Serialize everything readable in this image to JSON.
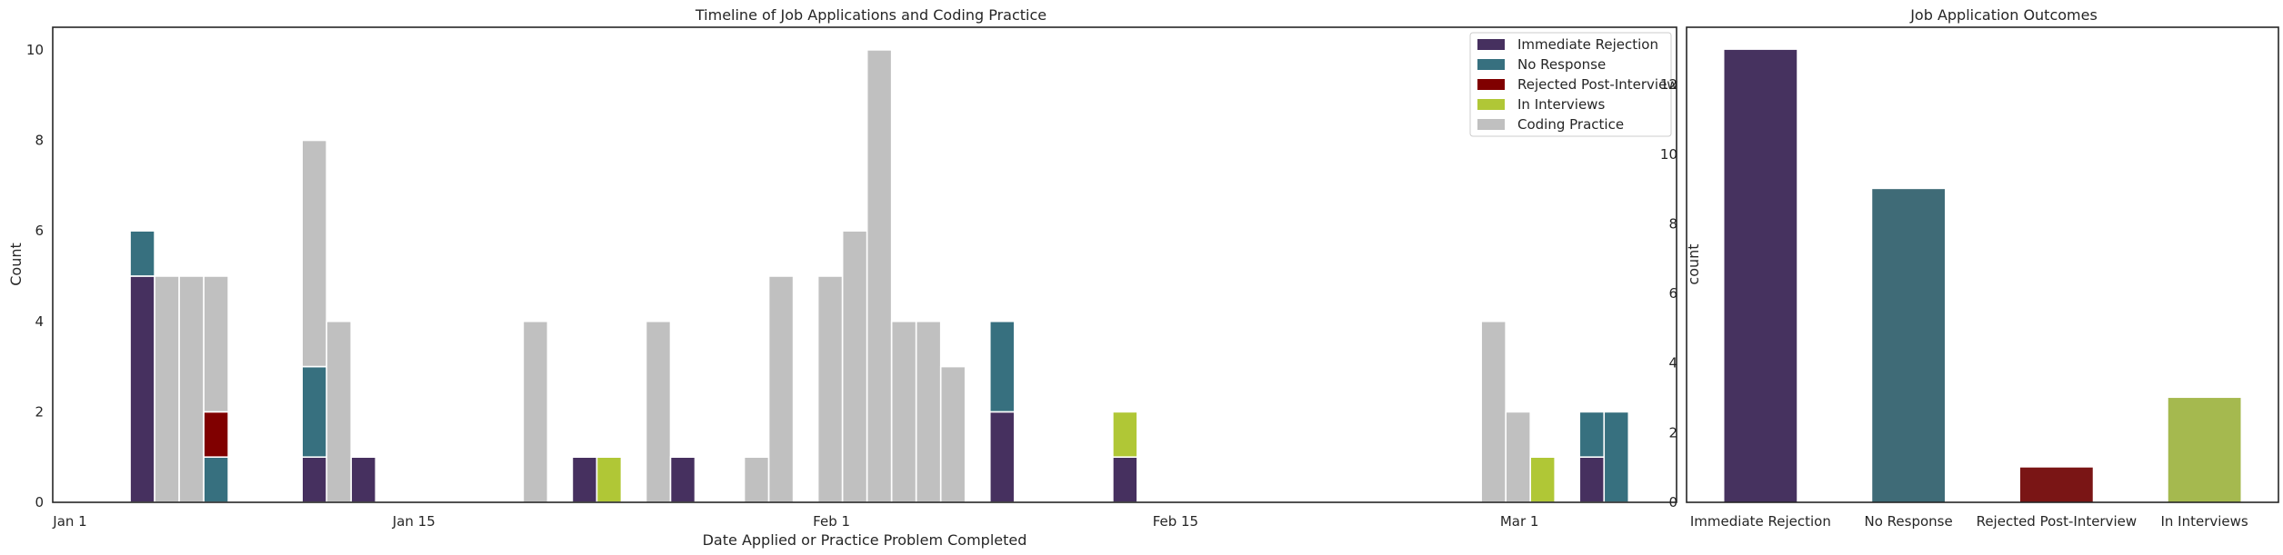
{
  "chart_data": [
    {
      "type": "bar",
      "stacked": true,
      "title": "Timeline of Job Applications and Coding Practice",
      "xlabel": "Date Applied or Practice Problem Completed",
      "ylabel": "Count",
      "xlim_day": [
        0,
        69
      ],
      "ylim": [
        0,
        10.5
      ],
      "yticks": [
        0,
        2,
        4,
        6,
        8,
        10
      ],
      "xticks": [
        {
          "day": 0,
          "label": "Jan 1"
        },
        {
          "day": 14,
          "label": "Jan 15"
        },
        {
          "day": 31,
          "label": "Feb 1"
        },
        {
          "day": 45,
          "label": "Feb 15"
        },
        {
          "day": 59,
          "label": "Mar 1"
        }
      ],
      "legend_position": "top-right",
      "series": [
        {
          "name": "Immediate Rejection",
          "color": "#46305f"
        },
        {
          "name": "No Response",
          "color": "#37707f"
        },
        {
          "name": "Rejected Post-Interview",
          "color": "#800000"
        },
        {
          "name": "In Interviews",
          "color": "#b0c736"
        },
        {
          "name": "Coding Practice",
          "color": "#c0c0c0"
        }
      ],
      "bins": [
        {
          "day": 3,
          "values": {
            "Immediate Rejection": 5,
            "No Response": 1
          }
        },
        {
          "day": 4,
          "values": {
            "Coding Practice": 5
          }
        },
        {
          "day": 5,
          "values": {
            "Coding Practice": 5
          }
        },
        {
          "day": 6,
          "values": {
            "No Response": 1,
            "Rejected Post-Interview": 1,
            "Coding Practice": 3
          }
        },
        {
          "day": 10,
          "values": {
            "Immediate Rejection": 1,
            "No Response": 2,
            "Coding Practice": 5
          }
        },
        {
          "day": 11,
          "values": {
            "Coding Practice": 4
          }
        },
        {
          "day": 12,
          "values": {
            "Immediate Rejection": 1
          }
        },
        {
          "day": 19,
          "values": {
            "Coding Practice": 4
          }
        },
        {
          "day": 21,
          "values": {
            "Immediate Rejection": 1
          }
        },
        {
          "day": 22,
          "values": {
            "In Interviews": 1
          }
        },
        {
          "day": 24,
          "values": {
            "Coding Practice": 4
          }
        },
        {
          "day": 25,
          "values": {
            "Immediate Rejection": 1
          }
        },
        {
          "day": 28,
          "values": {
            "Coding Practice": 1
          }
        },
        {
          "day": 29,
          "values": {
            "Coding Practice": 5
          }
        },
        {
          "day": 31,
          "values": {
            "Coding Practice": 5
          }
        },
        {
          "day": 32,
          "values": {
            "Coding Practice": 6
          }
        },
        {
          "day": 33,
          "values": {
            "Coding Practice": 10
          }
        },
        {
          "day": 34,
          "values": {
            "Coding Practice": 4
          }
        },
        {
          "day": 35,
          "values": {
            "Coding Practice": 4
          }
        },
        {
          "day": 36,
          "values": {
            "Coding Practice": 3
          }
        },
        {
          "day": 38,
          "values": {
            "Immediate Rejection": 2,
            "No Response": 2
          }
        },
        {
          "day": 43,
          "values": {
            "Immediate Rejection": 1,
            "In Interviews": 1
          }
        },
        {
          "day": 58,
          "values": {
            "Coding Practice": 4
          }
        },
        {
          "day": 59,
          "values": {
            "Coding Practice": 2
          }
        },
        {
          "day": 60,
          "values": {
            "In Interviews": 1
          }
        },
        {
          "day": 62,
          "values": {
            "Immediate Rejection": 1,
            "No Response": 1
          }
        },
        {
          "day": 63,
          "values": {
            "No Response": 2
          }
        }
      ]
    },
    {
      "type": "bar",
      "title": "Job Application Outcomes",
      "xlabel": "",
      "ylabel": "count",
      "ylim": [
        0,
        13.65
      ],
      "yticks": [
        0,
        2,
        4,
        6,
        8,
        10,
        12
      ],
      "categories": [
        "Immediate Rejection",
        "No Response",
        "Rejected Post-Interview",
        "In Interviews"
      ],
      "values": [
        13,
        9,
        1,
        3
      ],
      "colors": [
        "#46325f",
        "#3f6b77",
        "#7a1515",
        "#a5b94f"
      ]
    }
  ]
}
